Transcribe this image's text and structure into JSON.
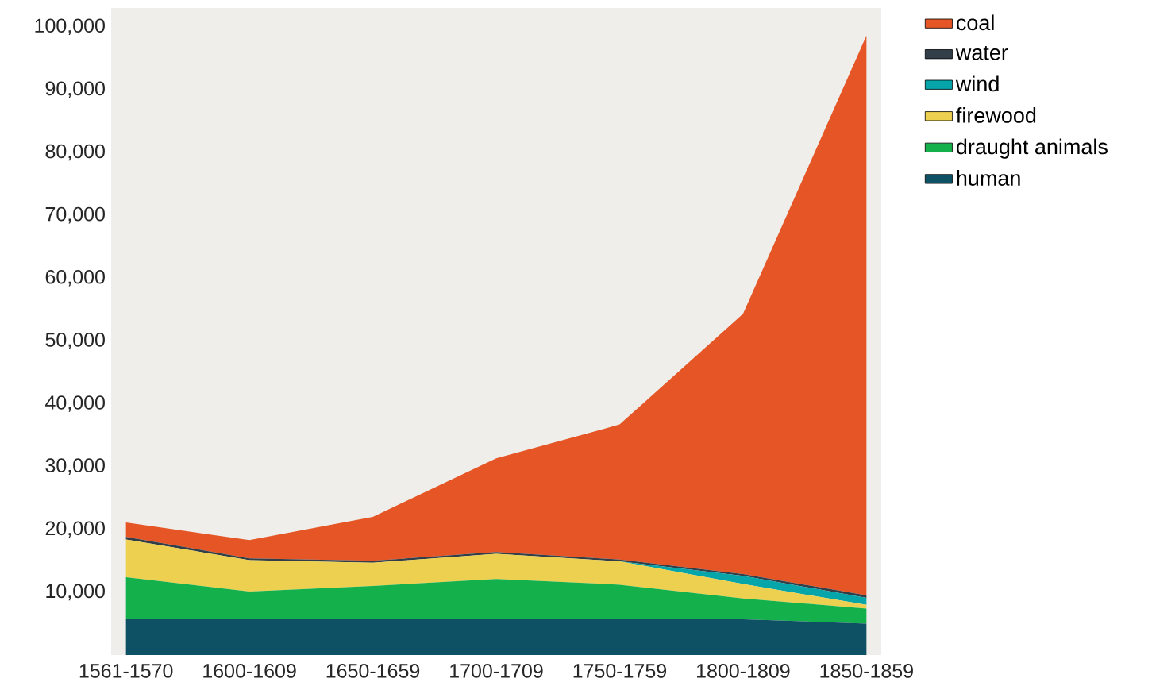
{
  "chart_data": {
    "type": "area",
    "stacked": true,
    "categories": [
      "1561-1570",
      "1600-1609",
      "1650-1659",
      "1700-1709",
      "1750-1759",
      "1800-1809",
      "1850-1859"
    ],
    "series": [
      {
        "name": "human",
        "color": "#0e5064",
        "values": [
          5800,
          5800,
          5800,
          5800,
          5800,
          5700,
          5000
        ]
      },
      {
        "name": "draught animals",
        "color": "#13b04b",
        "values": [
          6600,
          4300,
          5200,
          6300,
          5400,
          3300,
          2400
        ]
      },
      {
        "name": "firewood",
        "color": "#edd04f",
        "values": [
          6000,
          5000,
          3700,
          4000,
          3700,
          2300,
          600
        ]
      },
      {
        "name": "wind",
        "color": "#06a5a9",
        "values": [
          0,
          0,
          0,
          0,
          0,
          1300,
          1100
        ]
      },
      {
        "name": "water",
        "color": "#323e48",
        "values": [
          400,
          300,
          300,
          300,
          300,
          300,
          400
        ]
      },
      {
        "name": "coal",
        "color": "#e55525",
        "values": [
          2300,
          2900,
          7000,
          14900,
          21500,
          41400,
          89100
        ]
      }
    ],
    "ylim": [
      0,
      103000
    ],
    "yticks": [
      {
        "value": 10000,
        "label": "10,000"
      },
      {
        "value": 20000,
        "label": "20,000"
      },
      {
        "value": 30000,
        "label": "30,000"
      },
      {
        "value": 40000,
        "label": "40,000"
      },
      {
        "value": 50000,
        "label": "50,000"
      },
      {
        "value": 60000,
        "label": "60,000"
      },
      {
        "value": 70000,
        "label": "70,000"
      },
      {
        "value": 80000,
        "label": "80,000"
      },
      {
        "value": 90000,
        "label": "90,000"
      },
      {
        "value": 100000,
        "label": "100,000"
      }
    ],
    "grid": false,
    "legend": "right"
  }
}
